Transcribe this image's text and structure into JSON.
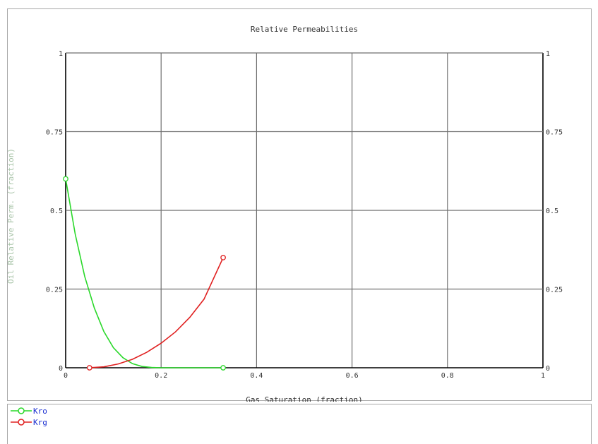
{
  "chart_data": {
    "type": "line",
    "title": "Relative Permeabilities",
    "xlabel": "Gas Saturation (fraction)",
    "ylabel": "Oil Relative Perm. (fraction)",
    "xlim": [
      0,
      1
    ],
    "ylim": [
      0,
      1
    ],
    "x_ticks": [
      0,
      0.2,
      0.4,
      0.6,
      0.8,
      1
    ],
    "x_tick_labels": [
      "0",
      "0.2",
      "0.4",
      "0.6",
      "0.8",
      "1"
    ],
    "y_ticks": [
      0,
      0.25,
      0.5,
      0.75,
      1
    ],
    "y_tick_labels": [
      "0",
      "0.25",
      "0.5",
      "0.75",
      "1"
    ],
    "right_y_tick_labels": [
      "0",
      "0.25",
      "0.5",
      "0.75",
      "1"
    ],
    "grid": true,
    "legend_position": "bottom-left",
    "series": [
      {
        "name": "Kro",
        "color": "#2ad82a",
        "x": [
          0.0,
          0.02,
          0.04,
          0.06,
          0.08,
          0.1,
          0.12,
          0.14,
          0.16,
          0.18,
          0.2,
          0.33
        ],
        "y": [
          0.6,
          0.425,
          0.29,
          0.19,
          0.115,
          0.064,
          0.032,
          0.013,
          0.004,
          0.001,
          0.0,
          0.0
        ],
        "markers": "endpoints"
      },
      {
        "name": "Krg",
        "color": "#e02020",
        "x": [
          0.05,
          0.08,
          0.11,
          0.14,
          0.17,
          0.2,
          0.23,
          0.26,
          0.29,
          0.33
        ],
        "y": [
          0.0,
          0.003,
          0.012,
          0.027,
          0.049,
          0.078,
          0.114,
          0.16,
          0.218,
          0.35
        ],
        "markers": "endpoints"
      }
    ]
  },
  "legend": {
    "items": [
      {
        "label": "Kro",
        "color": "#2ad82a"
      },
      {
        "label": "Krg",
        "color": "#e02020"
      }
    ]
  }
}
